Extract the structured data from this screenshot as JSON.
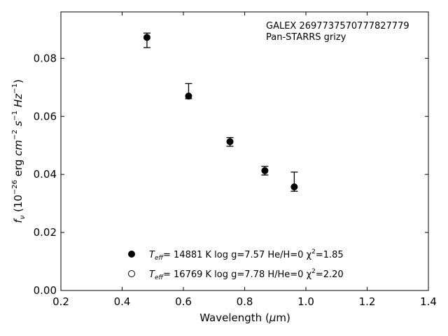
{
  "chart_data": {
    "type": "scatter",
    "annotation": [
      "GALEX 2697737570777827779",
      "Pan-STARRS grizy"
    ],
    "xlabel": "Wavelength (μm)",
    "ylabel": "fν (10⁻²⁶ erg cm⁻² s⁻¹ Hz⁻¹)",
    "xlim": [
      0.2,
      1.4
    ],
    "ylim": [
      0.0,
      0.096
    ],
    "xticks": [
      "0.2",
      "0.4",
      "0.6",
      "0.8",
      "1.0",
      "1.2",
      "1.4"
    ],
    "yticks": [
      "0.00",
      "0.02",
      "0.04",
      "0.06",
      "0.08"
    ],
    "grid": false,
    "legend_position": "lower-center",
    "series": [
      {
        "name": "T_eff= 14881 K  log g=7.57  He/H=0  χ²=1.85",
        "marker": "filled-circle",
        "color": "#000000",
        "points": [
          {
            "x": 0.481,
            "y": 0.0872
          },
          {
            "x": 0.617,
            "y": 0.067
          },
          {
            "x": 0.752,
            "y": 0.0513
          },
          {
            "x": 0.866,
            "y": 0.0413
          },
          {
            "x": 0.962,
            "y": 0.0357
          }
        ]
      },
      {
        "name": "T_eff= 16769 K  log g=7.78  H/He=0  χ²=2.20",
        "marker": "open-circle",
        "color": "#000000",
        "points": []
      }
    ],
    "observed": {
      "marker": "errorbar",
      "points": [
        {
          "x": 0.481,
          "y": 0.0862,
          "yerr": 0.0025
        },
        {
          "x": 0.617,
          "y": 0.0687,
          "yerr": 0.0026
        },
        {
          "x": 0.752,
          "y": 0.0512,
          "yerr": 0.0015
        },
        {
          "x": 0.866,
          "y": 0.0413,
          "yerr": 0.0015
        },
        {
          "x": 0.962,
          "y": 0.0375,
          "yerr": 0.0033
        }
      ]
    }
  },
  "legend": {
    "entries": [
      {
        "sym": "T",
        "sub": "eff",
        "rest": "= 14881 K  log g=7.57  He/H=0  χ",
        "sup": "2",
        "tail": "=1.85",
        "fill": "#000000"
      },
      {
        "sym": "T",
        "sub": "eff",
        "rest": "= 16769 K  log g=7.78  H/He=0  χ",
        "sup": "2",
        "tail": "=2.20",
        "fill": "#ffffff"
      }
    ]
  },
  "ylabel_parts": {
    "f": "f",
    "nu": "ν",
    "open": " (10",
    "exp1": "−26",
    "erg": " erg ",
    "cm": "cm",
    "exp2": "−2",
    "s": " s",
    "exp3": "−1",
    "hz": " Hz",
    "exp4": "−1",
    "close": ")"
  },
  "xlabel_parts": {
    "pre": "Wavelength (",
    "mu": "μ",
    "post": "m)"
  }
}
